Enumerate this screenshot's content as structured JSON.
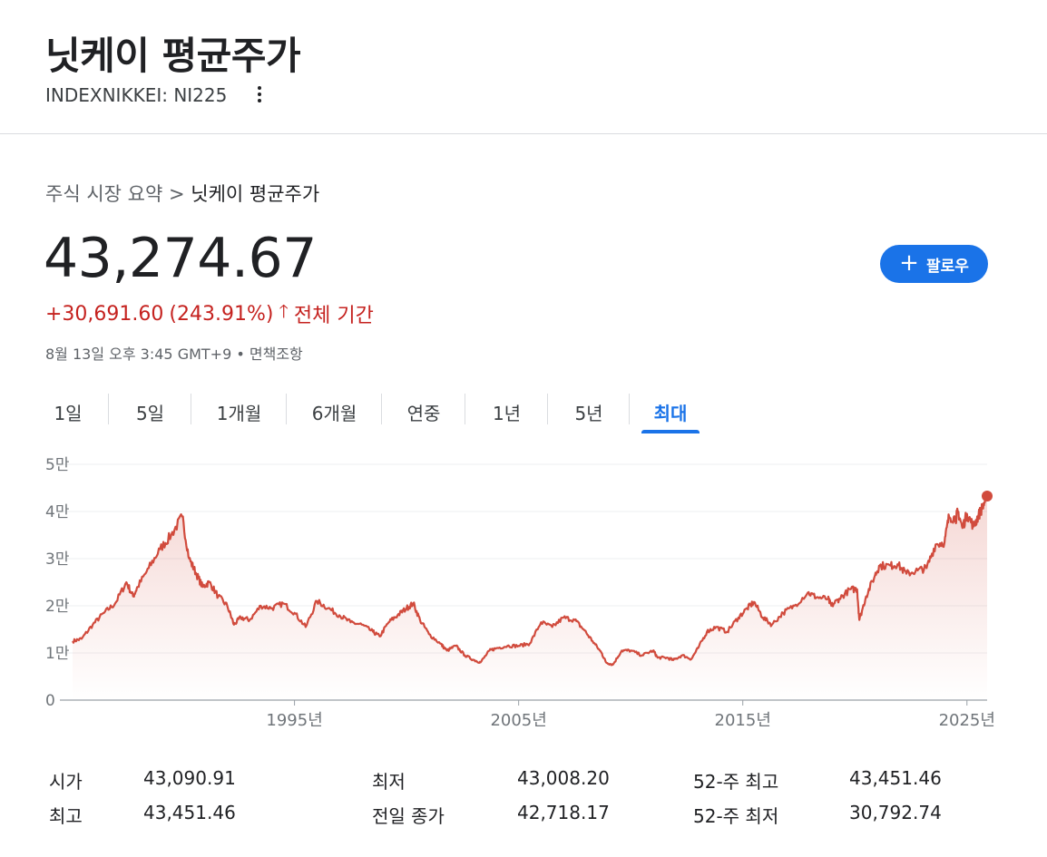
{
  "header": {
    "title": "닛케이 평균주가",
    "ticker": "INDEXNIKKEI: NI225"
  },
  "breadcrumb": {
    "parent": "주식 시장 요약",
    "separator": ">",
    "current": "닛케이 평균주가"
  },
  "quote": {
    "price": "43,274.67",
    "change": "+30,691.60",
    "change_percent": "(243.91%)",
    "period": "전체 기간",
    "timestamp": "8월 13일 오후 3:45 GMT+9",
    "disclaimer": "면책조항",
    "dot": "•"
  },
  "follow_button": {
    "label": "팔로우",
    "plus": "+"
  },
  "tabs": [
    {
      "label": "1일"
    },
    {
      "label": "5일"
    },
    {
      "label": "1개월"
    },
    {
      "label": "6개월"
    },
    {
      "label": "연중"
    },
    {
      "label": "1년"
    },
    {
      "label": "5년"
    },
    {
      "label": "최대",
      "active": true
    }
  ],
  "colors": {
    "accent": "#1a73e8",
    "line": "#d14b3d",
    "negative_text": "#c5221f"
  },
  "chart_data": {
    "type": "area",
    "y_ticks": [
      {
        "value": 0,
        "label": "0"
      },
      {
        "value": 10000,
        "label": "1만"
      },
      {
        "value": 20000,
        "label": "2만"
      },
      {
        "value": 30000,
        "label": "3만"
      },
      {
        "value": 40000,
        "label": "4만"
      },
      {
        "value": 50000,
        "label": "5만"
      }
    ],
    "x_ticks": [
      {
        "value": 1995,
        "label": "1995년"
      },
      {
        "value": 2005,
        "label": "2005년"
      },
      {
        "value": 2015,
        "label": "2015년"
      },
      {
        "value": 2025,
        "label": "2025년"
      }
    ],
    "ylim": [
      0,
      50000
    ],
    "xlim": [
      1985.1,
      2025.9
    ],
    "grid": true,
    "series": [
      {
        "x": [
          1985.1,
          1985.5,
          1986.0,
          1986.5,
          1987.0,
          1987.5,
          1987.8,
          1988.0,
          1988.5,
          1989.0,
          1989.5,
          1989.99,
          1990.3,
          1990.6,
          1990.9,
          1991.2,
          1991.6,
          1992.0,
          1992.3,
          1992.6,
          1993.0,
          1993.5,
          1994.0,
          1994.5,
          1995.0,
          1995.5,
          1996.0,
          1996.5,
          1997.0,
          1997.5,
          1998.0,
          1998.5,
          1998.8,
          1999.2,
          1999.6,
          2000.0,
          2000.3,
          2000.6,
          2001.0,
          2001.5,
          2001.8,
          2002.2,
          2002.6,
          2003.0,
          2003.3,
          2003.7,
          2004.0,
          2004.5,
          2005.0,
          2005.5,
          2006.0,
          2006.5,
          2007.0,
          2007.5,
          2007.9,
          2008.3,
          2008.7,
          2008.9,
          2009.2,
          2009.6,
          2010.0,
          2010.5,
          2011.0,
          2011.2,
          2011.6,
          2011.9,
          2012.3,
          2012.7,
          2013.0,
          2013.4,
          2013.8,
          2014.3,
          2014.8,
          2015.2,
          2015.5,
          2015.9,
          2016.3,
          2016.8,
          2017.3,
          2017.9,
          2018.3,
          2018.8,
          2018.95,
          2019.3,
          2019.8,
          2020.1,
          2020.2,
          2020.5,
          2020.9,
          2021.1,
          2021.6,
          2021.9,
          2022.3,
          2022.8,
          2023.2,
          2023.6,
          2024.0,
          2024.2,
          2024.5,
          2024.6,
          2024.8,
          2025.0,
          2025.3,
          2025.5,
          2025.7,
          2025.9
        ],
        "values": [
          12500,
          13000,
          16000,
          18500,
          20500,
          25000,
          22000,
          24000,
          28000,
          32000,
          35000,
          38900,
          30000,
          27000,
          24000,
          25000,
          22000,
          20000,
          16000,
          17500,
          17000,
          20000,
          19500,
          20500,
          18500,
          15500,
          21000,
          19500,
          18000,
          16500,
          16000,
          14500,
          13500,
          16500,
          18000,
          19500,
          20500,
          17000,
          14000,
          12000,
          10500,
          11500,
          9500,
          8500,
          8000,
          10500,
          11000,
          11500,
          11500,
          12000,
          16500,
          15500,
          17500,
          17000,
          15000,
          12500,
          10000,
          8000,
          7500,
          10500,
          10500,
          9500,
          10500,
          9000,
          9000,
          8500,
          9500,
          8700,
          11000,
          14500,
          15500,
          14500,
          17500,
          19500,
          20800,
          17500,
          16000,
          18500,
          20000,
          22800,
          21800,
          21500,
          20000,
          21500,
          23500,
          23500,
          17000,
          22000,
          26500,
          28500,
          28500,
          28800,
          26800,
          27500,
          28000,
          33000,
          33500,
          39000,
          38500,
          40000,
          36500,
          39500,
          36800,
          39000,
          41000,
          43274.67
        ]
      }
    ]
  },
  "stats": [
    {
      "label": "시가",
      "value": "43,090.91"
    },
    {
      "label": "최고",
      "value": "43,451.46"
    },
    {
      "label": "최저",
      "value": "43,008.20"
    },
    {
      "label": "전일 종가",
      "value": "42,718.17"
    },
    {
      "label": "52-주 최고",
      "value": "43,451.46"
    },
    {
      "label": "52-주 최저",
      "value": "30,792.74"
    }
  ]
}
